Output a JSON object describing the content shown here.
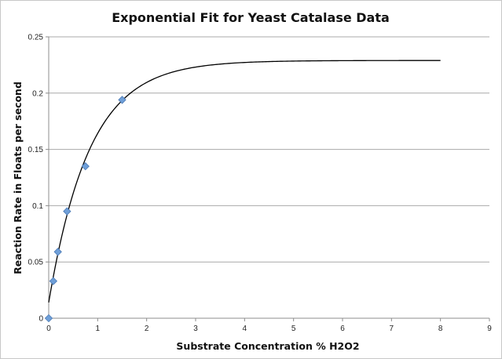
{
  "chart_data": {
    "type": "scatter",
    "title": "Exponential Fit for Yeast Catalase Data",
    "xlabel": "Substrate Concentration % H2O2",
    "ylabel": "Reaction Rate in Floats per second",
    "xlim": [
      0,
      9
    ],
    "ylim": [
      0,
      0.25
    ],
    "xticks": [
      "0",
      "1",
      "2",
      "3",
      "4",
      "5",
      "6",
      "7",
      "8",
      "9"
    ],
    "yticks": [
      "0",
      "0.05",
      "0.1",
      "0.15",
      "0.2",
      "0.25"
    ],
    "grid": "horizontal",
    "legend": "none",
    "series": [
      {
        "kind": "points",
        "marker": "diamond",
        "color": "#6f9fd8",
        "x": [
          0,
          0.09375,
          0.1875,
          0.375,
          0.75,
          1.5
        ],
        "y": [
          0,
          0.033,
          0.059,
          0.095,
          0.135,
          0.194
        ]
      },
      {
        "kind": "fit-curve",
        "color": "#000000",
        "x_range": [
          0,
          8
        ],
        "equation": "y = 0.229 - 0.215 * exp(-1.2 * x)"
      }
    ]
  }
}
